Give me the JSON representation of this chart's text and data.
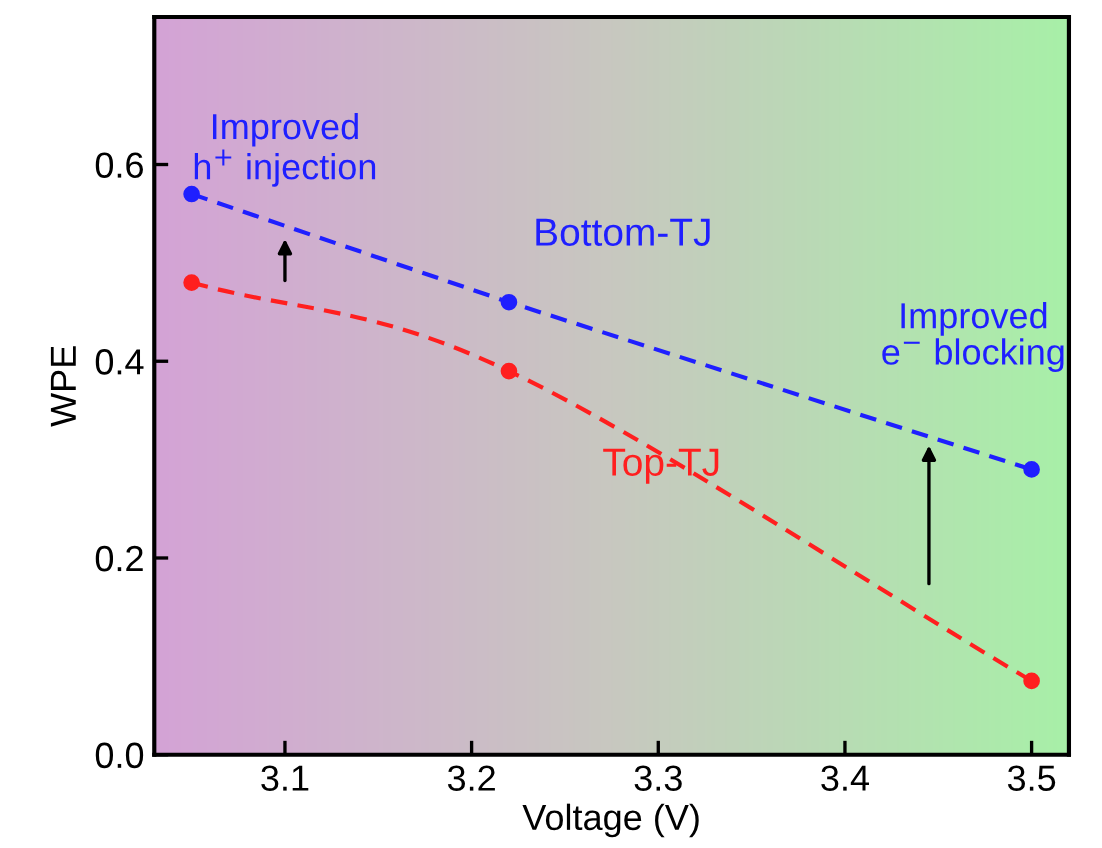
{
  "chart_data": {
    "type": "line",
    "xlabel": "Voltage (V)",
    "ylabel": "WPE",
    "x": [
      3.05,
      3.22,
      3.5
    ],
    "series": [
      {
        "name": "Bottom-TJ",
        "color": "#1f1fff",
        "values": [
          0.57,
          0.46,
          0.29
        ]
      },
      {
        "name": "Top-TJ",
        "color": "#ff1f1f",
        "values": [
          0.48,
          0.39,
          0.075
        ]
      }
    ],
    "annotations": [
      {
        "text": "Improved\nh$^{+}$ injection",
        "x": 3.1,
        "y": 0.53
      },
      {
        "text": "Improved\ne$^{−}$ blocking",
        "x": 3.445,
        "y": 0.32
      }
    ],
    "xlim": [
      3.03,
      3.52
    ],
    "ylim": [
      0,
      0.75
    ],
    "xticks": [
      3.1,
      3.2,
      3.3,
      3.4,
      3.5
    ],
    "yticks": [
      {
        "value": 0,
        "label": "0.0"
      },
      0.2,
      0.4,
      0.6
    ],
    "marker": "circle",
    "line_style": "dashed",
    "grid": false,
    "legend": false
  }
}
